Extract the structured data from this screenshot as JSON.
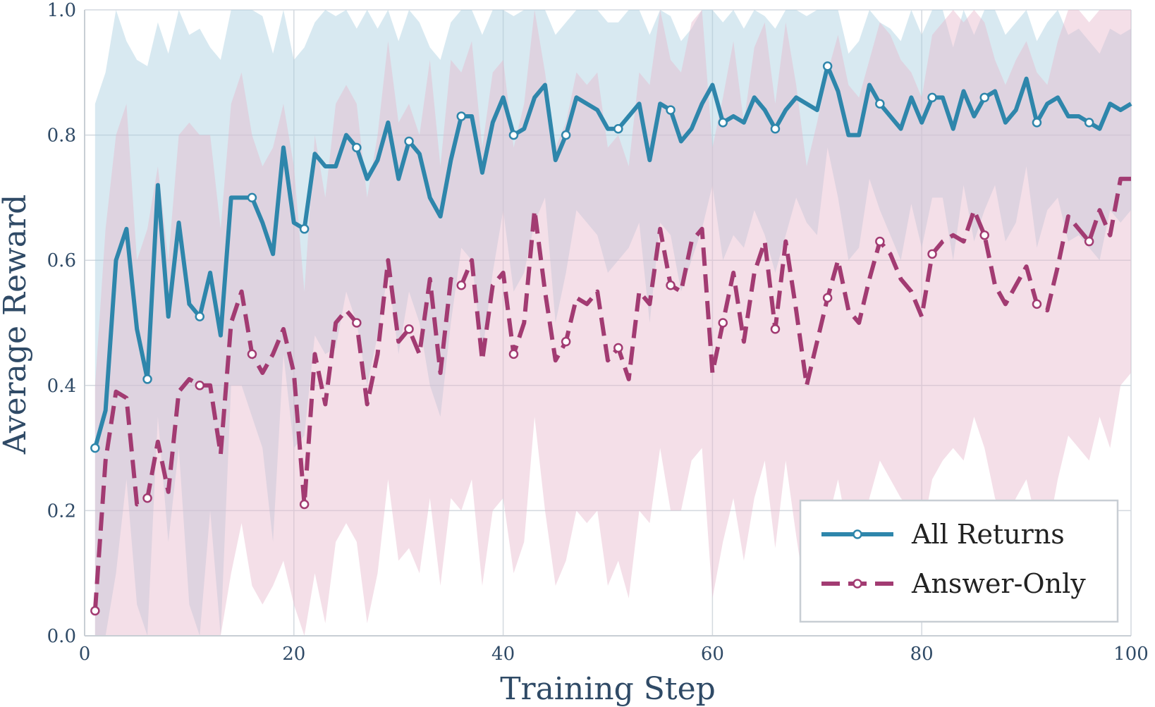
{
  "chart_data": {
    "type": "line",
    "xlabel": "Training Step",
    "ylabel": "Average Reward",
    "xlim": [
      0,
      100
    ],
    "ylim": [
      0.0,
      1.0
    ],
    "xticks": [
      0,
      20,
      40,
      60,
      80,
      100
    ],
    "yticks": [
      0.0,
      0.2,
      0.4,
      0.6,
      0.8,
      1.0
    ],
    "xtick_labels": [
      "0",
      "20",
      "40",
      "60",
      "80",
      "100"
    ],
    "ytick_labels": [
      "0.0",
      "0.2",
      "0.4",
      "0.6",
      "0.8",
      "1.0"
    ],
    "grid": true,
    "legend_position": "lower-right",
    "x": [
      1,
      2,
      3,
      4,
      5,
      6,
      7,
      8,
      9,
      10,
      11,
      12,
      13,
      14,
      15,
      16,
      17,
      18,
      19,
      20,
      21,
      22,
      23,
      24,
      25,
      26,
      27,
      28,
      29,
      30,
      31,
      32,
      33,
      34,
      35,
      36,
      37,
      38,
      39,
      40,
      41,
      42,
      43,
      44,
      45,
      46,
      47,
      48,
      49,
      50,
      51,
      52,
      53,
      54,
      55,
      56,
      57,
      58,
      59,
      60,
      61,
      62,
      63,
      64,
      65,
      66,
      67,
      68,
      69,
      70,
      71,
      72,
      73,
      74,
      75,
      76,
      77,
      78,
      79,
      80,
      81,
      82,
      83,
      84,
      85,
      86,
      87,
      88,
      89,
      90,
      91,
      92,
      93,
      94,
      95,
      96,
      97,
      98,
      99,
      100
    ],
    "marker_every": 5,
    "series": [
      {
        "name": "All Returns",
        "color": "#2e86ab",
        "fill_color": "#a8cfe0",
        "line_style": "solid",
        "values": [
          0.3,
          0.36,
          0.6,
          0.65,
          0.49,
          0.41,
          0.72,
          0.51,
          0.66,
          0.53,
          0.51,
          0.58,
          0.48,
          0.7,
          0.7,
          0.7,
          0.66,
          0.61,
          0.78,
          0.66,
          0.65,
          0.77,
          0.75,
          0.75,
          0.8,
          0.78,
          0.73,
          0.76,
          0.82,
          0.73,
          0.79,
          0.77,
          0.7,
          0.67,
          0.76,
          0.83,
          0.83,
          0.74,
          0.82,
          0.86,
          0.8,
          0.81,
          0.86,
          0.88,
          0.76,
          0.8,
          0.86,
          0.85,
          0.84,
          0.81,
          0.81,
          0.83,
          0.85,
          0.76,
          0.85,
          0.84,
          0.79,
          0.81,
          0.85,
          0.88,
          0.82,
          0.83,
          0.82,
          0.86,
          0.84,
          0.81,
          0.84,
          0.86,
          0.85,
          0.84,
          0.91,
          0.87,
          0.8,
          0.8,
          0.88,
          0.85,
          0.83,
          0.81,
          0.86,
          0.82,
          0.86,
          0.86,
          0.81,
          0.87,
          0.83,
          0.86,
          0.87,
          0.82,
          0.84,
          0.89,
          0.82,
          0.85,
          0.86,
          0.83,
          0.83,
          0.82,
          0.81,
          0.85,
          0.84,
          0.85
        ],
        "upper": [
          0.85,
          0.9,
          1.0,
          0.95,
          0.92,
          0.91,
          0.98,
          0.93,
          1.0,
          0.96,
          0.97,
          0.94,
          0.92,
          1.0,
          1.0,
          1.0,
          0.99,
          0.93,
          1.0,
          0.92,
          0.94,
          0.98,
          1.0,
          0.99,
          1.0,
          0.97,
          1.0,
          0.97,
          1.0,
          0.95,
          1.0,
          0.98,
          0.94,
          0.92,
          0.98,
          1.0,
          1.0,
          0.96,
          1.0,
          1.0,
          0.99,
          1.0,
          1.0,
          1.0,
          0.96,
          0.98,
          1.0,
          1.0,
          1.0,
          0.98,
          0.98,
          1.0,
          1.0,
          0.96,
          1.0,
          0.99,
          0.95,
          0.97,
          1.0,
          1.0,
          0.98,
          1.0,
          0.97,
          1.0,
          0.99,
          0.97,
          1.0,
          1.0,
          0.99,
          1.0,
          1.0,
          1.0,
          0.93,
          0.95,
          1.0,
          0.98,
          0.97,
          0.95,
          1.0,
          0.96,
          1.0,
          1.0,
          0.94,
          1.0,
          0.96,
          1.0,
          1.0,
          0.96,
          0.98,
          1.0,
          0.95,
          0.98,
          1.0,
          0.96,
          0.97,
          0.95,
          0.93,
          0.97,
          0.96,
          0.97
        ],
        "lower": [
          0.0,
          0.0,
          0.1,
          0.25,
          0.05,
          0.0,
          0.35,
          0.15,
          0.3,
          0.05,
          0.0,
          0.2,
          0.0,
          0.4,
          0.4,
          0.35,
          0.3,
          0.15,
          0.45,
          0.3,
          0.32,
          0.48,
          0.45,
          0.46,
          0.55,
          0.5,
          0.4,
          0.48,
          0.58,
          0.45,
          0.55,
          0.5,
          0.4,
          0.35,
          0.5,
          0.62,
          0.6,
          0.45,
          0.58,
          0.68,
          0.55,
          0.58,
          0.66,
          0.7,
          0.5,
          0.58,
          0.68,
          0.66,
          0.64,
          0.58,
          0.6,
          0.62,
          0.66,
          0.5,
          0.66,
          0.64,
          0.55,
          0.6,
          0.65,
          0.72,
          0.6,
          0.64,
          0.62,
          0.68,
          0.64,
          0.58,
          0.64,
          0.7,
          0.66,
          0.64,
          0.78,
          0.7,
          0.6,
          0.62,
          0.73,
          0.68,
          0.64,
          0.6,
          0.69,
          0.62,
          0.7,
          0.7,
          0.6,
          0.72,
          0.63,
          0.68,
          0.72,
          0.63,
          0.66,
          0.75,
          0.62,
          0.68,
          0.7,
          0.63,
          0.64,
          0.62,
          0.6,
          0.68,
          0.66,
          0.68
        ]
      },
      {
        "name": "Answer-Only",
        "color": "#a23b72",
        "fill_color": "#e6b8cc",
        "line_style": "dashed",
        "values": [
          0.04,
          0.28,
          0.39,
          0.38,
          0.21,
          0.22,
          0.31,
          0.23,
          0.39,
          0.41,
          0.4,
          0.4,
          0.29,
          0.5,
          0.55,
          0.45,
          0.42,
          0.45,
          0.49,
          0.42,
          0.21,
          0.45,
          0.37,
          0.5,
          0.52,
          0.5,
          0.37,
          0.45,
          0.6,
          0.47,
          0.49,
          0.45,
          0.57,
          0.42,
          0.57,
          0.56,
          0.6,
          0.44,
          0.56,
          0.58,
          0.45,
          0.5,
          0.68,
          0.55,
          0.44,
          0.47,
          0.54,
          0.53,
          0.55,
          0.44,
          0.46,
          0.41,
          0.55,
          0.53,
          0.65,
          0.56,
          0.55,
          0.63,
          0.65,
          0.42,
          0.5,
          0.58,
          0.47,
          0.58,
          0.63,
          0.49,
          0.63,
          0.52,
          0.4,
          0.47,
          0.54,
          0.6,
          0.52,
          0.5,
          0.57,
          0.63,
          0.61,
          0.57,
          0.55,
          0.51,
          0.61,
          0.63,
          0.64,
          0.63,
          0.68,
          0.64,
          0.56,
          0.53,
          0.56,
          0.59,
          0.53,
          0.52,
          0.59,
          0.67,
          0.65,
          0.63,
          0.68,
          0.64,
          0.73,
          0.73
        ],
        "upper": [
          0.4,
          0.65,
          0.8,
          0.85,
          0.6,
          0.65,
          0.75,
          0.6,
          0.8,
          0.82,
          0.8,
          0.8,
          0.65,
          0.85,
          0.9,
          0.8,
          0.75,
          0.78,
          0.85,
          0.75,
          0.55,
          0.8,
          0.7,
          0.85,
          0.88,
          0.85,
          0.7,
          0.8,
          0.95,
          0.82,
          0.85,
          0.8,
          0.92,
          0.75,
          0.92,
          0.9,
          0.95,
          0.78,
          0.9,
          0.92,
          0.78,
          0.85,
          1.0,
          0.9,
          0.78,
          0.82,
          0.9,
          0.88,
          0.9,
          0.78,
          0.8,
          0.75,
          0.9,
          0.88,
          1.0,
          0.92,
          0.9,
          0.98,
          1.0,
          0.78,
          0.86,
          0.95,
          0.82,
          0.94,
          0.98,
          0.85,
          0.98,
          0.88,
          0.75,
          0.82,
          0.9,
          0.96,
          0.88,
          0.86,
          0.92,
          0.98,
          0.96,
          0.92,
          0.9,
          0.86,
          0.96,
          0.98,
          1.0,
          0.98,
          1.0,
          0.98,
          0.92,
          0.88,
          0.92,
          0.95,
          0.9,
          0.88,
          0.95,
          1.0,
          1.0,
          0.98,
          1.0,
          1.0,
          1.0,
          1.0
        ],
        "lower": [
          0.0,
          0.0,
          0.0,
          0.0,
          0.0,
          0.0,
          0.0,
          0.0,
          0.0,
          0.0,
          0.0,
          0.0,
          0.0,
          0.1,
          0.18,
          0.08,
          0.05,
          0.08,
          0.12,
          0.05,
          0.0,
          0.1,
          0.02,
          0.15,
          0.18,
          0.15,
          0.02,
          0.1,
          0.25,
          0.12,
          0.14,
          0.1,
          0.22,
          0.08,
          0.22,
          0.2,
          0.25,
          0.08,
          0.2,
          0.22,
          0.1,
          0.15,
          0.35,
          0.2,
          0.08,
          0.12,
          0.2,
          0.18,
          0.2,
          0.08,
          0.12,
          0.06,
          0.2,
          0.18,
          0.3,
          0.2,
          0.2,
          0.28,
          0.3,
          0.06,
          0.15,
          0.22,
          0.12,
          0.22,
          0.28,
          0.14,
          0.28,
          0.16,
          0.05,
          0.12,
          0.18,
          0.25,
          0.16,
          0.14,
          0.22,
          0.28,
          0.25,
          0.22,
          0.2,
          0.16,
          0.25,
          0.28,
          0.3,
          0.28,
          0.35,
          0.3,
          0.22,
          0.18,
          0.22,
          0.25,
          0.18,
          0.16,
          0.25,
          0.32,
          0.3,
          0.28,
          0.35,
          0.3,
          0.4,
          0.42
        ]
      }
    ]
  }
}
